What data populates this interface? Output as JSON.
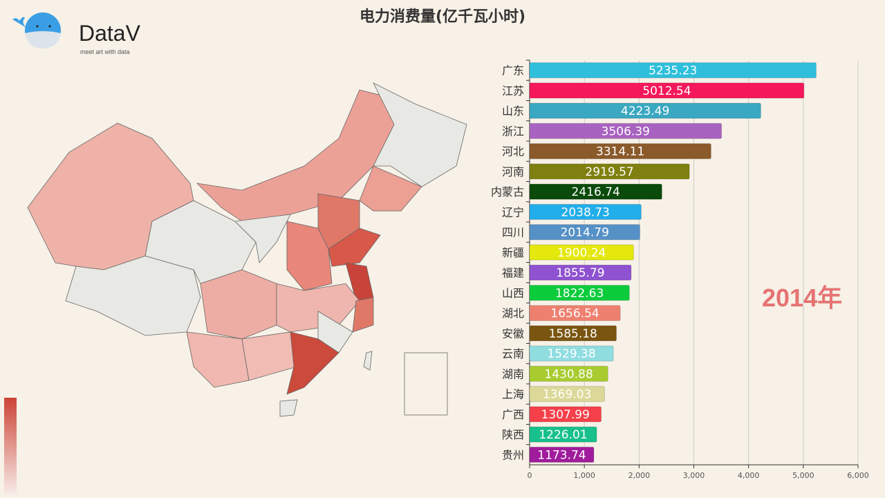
{
  "title": "电力消费量(亿千瓦小时)",
  "logo": {
    "name": "DataV",
    "tagline": "meet art with data"
  },
  "year_label": "2014年",
  "chart_data": {
    "type": "bar",
    "orientation": "horizontal",
    "title": "电力消费量(亿千瓦小时)",
    "categories": [
      "广东",
      "江苏",
      "山东",
      "浙江",
      "河北",
      "河南",
      "内蒙古",
      "辽宁",
      "四川",
      "新疆",
      "福建",
      "山西",
      "湖北",
      "安徽",
      "云南",
      "湖南",
      "上海",
      "广西",
      "陕西",
      "贵州"
    ],
    "values": [
      5235.23,
      5012.54,
      4223.49,
      3506.39,
      3314.11,
      2919.57,
      2416.74,
      2038.73,
      2014.79,
      1900.24,
      1855.79,
      1822.63,
      1656.54,
      1585.18,
      1529.38,
      1430.88,
      1369.03,
      1307.99,
      1226.01,
      1173.74
    ],
    "colors": [
      "#2fbfdc",
      "#f5185a",
      "#3aa8c0",
      "#a862c0",
      "#8b5a2b",
      "#808010",
      "#0a4a0a",
      "#22aeea",
      "#5591c6",
      "#e4e80c",
      "#8f52d0",
      "#0ccc3c",
      "#ee8070",
      "#7a5510",
      "#90dde0",
      "#a8cc30",
      "#dcd898",
      "#f5404a",
      "#18c08c",
      "#a01c9c"
    ],
    "xlim": [
      0,
      6000
    ],
    "xticks": [
      "0",
      "1,000",
      "2,000",
      "3,000",
      "4,000",
      "5,000",
      "6,000"
    ],
    "grid": true
  }
}
